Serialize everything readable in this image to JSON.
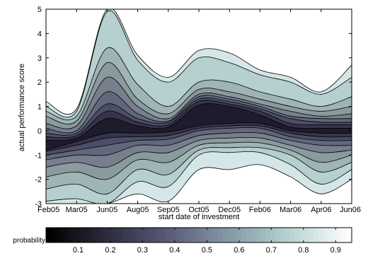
{
  "chart_data": {
    "type": "contour",
    "title": "",
    "xlabel": "start date of investment",
    "ylabel": "actual performance score",
    "x_ticks": [
      "Feb05",
      "Mar05",
      "Jun05",
      "Aug05",
      "Sep05",
      "Oct05",
      "Dec05",
      "Feb06",
      "Mar06",
      "Apr06",
      "Jun06"
    ],
    "y_ticks": [
      "-3",
      "-2",
      "-1",
      "0",
      "1",
      "2",
      "3",
      "4",
      "5"
    ],
    "ylim": [
      -3,
      5
    ],
    "colorbar": {
      "label": "probability",
      "ticks": [
        "0.1",
        "0.2",
        "0.3",
        "0.4",
        "0.5",
        "0.6",
        "0.7",
        "0.8",
        "0.9"
      ],
      "range": [
        0,
        0.95
      ],
      "colormap": "bone (reversed)"
    },
    "series": [
      {
        "name": "",
        "level": 0.9,
        "color": "#d5e6e6",
        "upper": [
          1.2,
          0.9,
          5.0,
          3.1,
          2.2,
          3.3,
          3.2,
          2.5,
          2.2,
          1.6,
          2.7
        ],
        "lower": [
          -3.0,
          -3.0,
          -3.0,
          -2.6,
          -2.9,
          -1.6,
          -1.6,
          -1.4,
          -1.9,
          -2.6,
          -2.0
        ]
      },
      {
        "name": "",
        "level": 0.8,
        "color": "#b6cfcf",
        "upper": [
          1.0,
          0.8,
          4.9,
          2.9,
          2.0,
          3.0,
          2.8,
          2.3,
          2.0,
          1.5,
          2.2
        ],
        "lower": [
          -2.9,
          -2.8,
          -3.0,
          -2.1,
          -2.3,
          -1.0,
          -0.9,
          -0.9,
          -1.4,
          -2.2,
          -1.6
        ]
      },
      {
        "name": "",
        "level": 0.7,
        "color": "#9fb4b4",
        "upper": [
          0.8,
          0.6,
          3.4,
          1.9,
          1.0,
          2.0,
          2.0,
          1.6,
          1.3,
          1.0,
          1.4
        ],
        "lower": [
          -2.4,
          -2.2,
          -2.6,
          -1.6,
          -1.8,
          -0.8,
          -0.7,
          -0.7,
          -1.0,
          -1.7,
          -1.3
        ]
      },
      {
        "name": "",
        "level": 0.6,
        "color": "#8a9a9f",
        "upper": [
          0.6,
          0.4,
          2.8,
          1.3,
          0.7,
          1.7,
          1.6,
          1.3,
          1.0,
          0.8,
          1.0
        ],
        "lower": [
          -1.9,
          -1.7,
          -2.0,
          -1.2,
          -1.3,
          -0.6,
          -0.5,
          -0.5,
          -0.8,
          -1.3,
          -1.0
        ]
      },
      {
        "name": "",
        "level": 0.5,
        "color": "#777f8d",
        "upper": [
          0.3,
          0.2,
          2.2,
          1.0,
          0.5,
          1.5,
          1.4,
          1.1,
          0.8,
          0.6,
          0.7
        ],
        "lower": [
          -1.5,
          -1.3,
          -1.5,
          -0.9,
          -0.9,
          -0.4,
          -0.3,
          -0.3,
          -0.6,
          -0.9,
          -0.8
        ]
      },
      {
        "name": "",
        "level": 0.4,
        "color": "#62677b",
        "upper": [
          0.1,
          0.0,
          1.6,
          0.7,
          0.4,
          1.4,
          1.3,
          1.0,
          0.6,
          0.5,
          0.5
        ],
        "lower": [
          -1.2,
          -1.0,
          -1.0,
          -0.6,
          -0.6,
          -0.2,
          -0.1,
          -0.1,
          -0.4,
          -0.6,
          -0.6
        ]
      },
      {
        "name": "",
        "level": 0.3,
        "color": "#4c4d66",
        "upper": [
          -0.1,
          -0.1,
          1.1,
          0.5,
          0.35,
          1.3,
          1.2,
          0.9,
          0.5,
          0.35,
          0.35
        ],
        "lower": [
          -1.0,
          -0.8,
          -0.6,
          -0.4,
          -0.35,
          0.0,
          0.1,
          0.1,
          -0.25,
          -0.4,
          -0.4
        ]
      },
      {
        "name": "",
        "level": 0.2,
        "color": "#35344c",
        "upper": [
          -0.25,
          -0.2,
          0.8,
          0.35,
          0.25,
          1.2,
          1.1,
          0.8,
          0.3,
          0.25,
          0.25
        ],
        "lower": [
          -0.85,
          -0.6,
          -0.3,
          -0.25,
          -0.2,
          0.1,
          0.2,
          0.2,
          -0.1,
          -0.25,
          -0.25
        ]
      },
      {
        "name": "",
        "level": 0.1,
        "color": "#1d1b2c",
        "upper": [
          -0.4,
          -0.3,
          0.5,
          0.2,
          0.15,
          1.05,
          1.0,
          0.65,
          0.15,
          0.1,
          0.1
        ],
        "lower": [
          -0.8,
          -0.45,
          -0.1,
          -0.1,
          -0.05,
          0.2,
          0.3,
          0.3,
          0.0,
          -0.1,
          -0.1
        ]
      }
    ]
  }
}
